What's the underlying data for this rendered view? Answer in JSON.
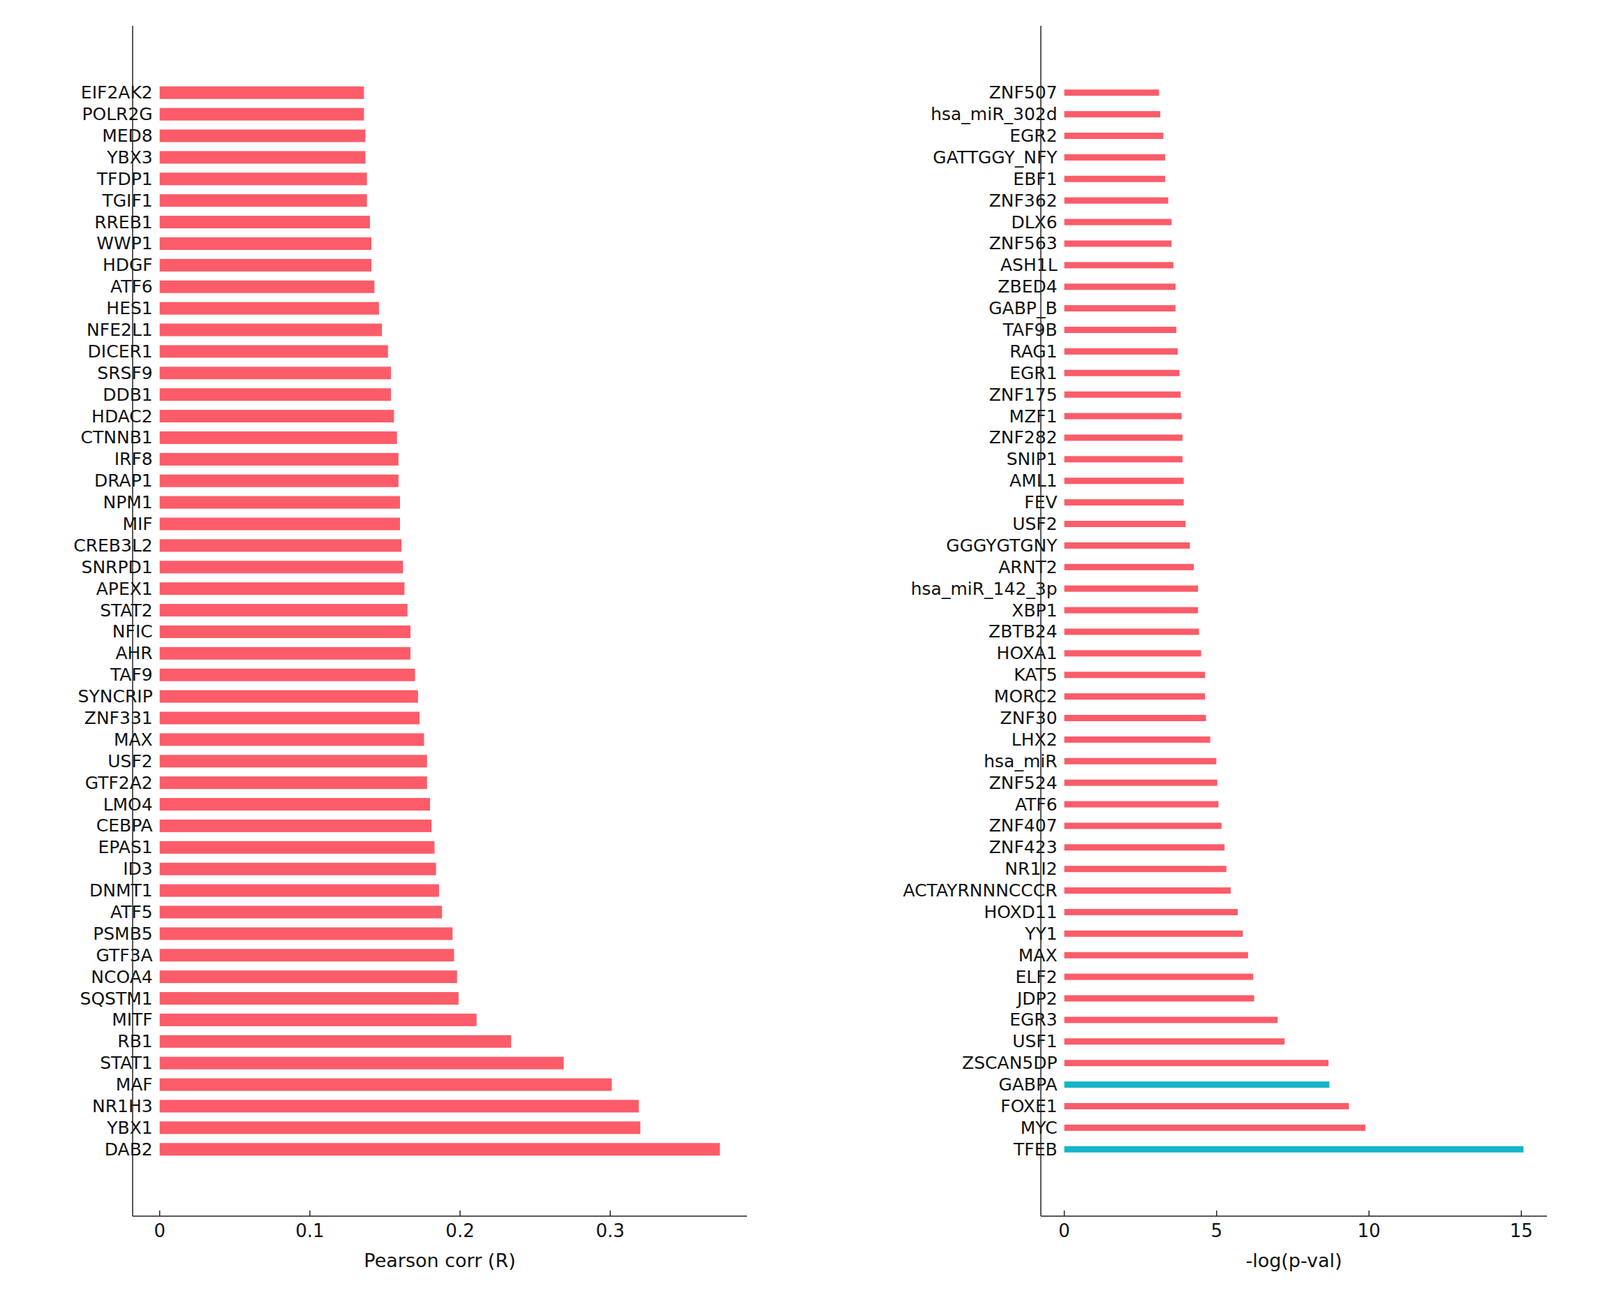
{
  "chart_data": [
    {
      "type": "bar",
      "orientation": "horizontal",
      "x_label": "Pearson corr (R)",
      "categories": [
        "EIF2AK2",
        "POLR2G",
        "MED8",
        "YBX3",
        "TFDP1",
        "TGIF1",
        "RREB1",
        "WWP1",
        "HDGF",
        "ATF6",
        "HES1",
        "NFE2L1",
        "DICER1",
        "SRSF9",
        "DDB1",
        "HDAC2",
        "CTNNB1",
        "IRF8",
        "DRAP1",
        "NPM1",
        "MIF",
        "CREB3L2",
        "SNRPD1",
        "APEX1",
        "STAT2",
        "NFIC",
        "AHR",
        "TAF9",
        "SYNCRIP",
        "ZNF331",
        "MAX",
        "USF2",
        "GTF2A2",
        "LMO4",
        "CEBPA",
        "EPAS1",
        "ID3",
        "DNMT1",
        "ATF5",
        "PSMB5",
        "GTF3A",
        "NCOA4",
        "SQSTM1",
        "MITF",
        "RB1",
        "STAT1",
        "MAF",
        "NR1H3",
        "YBX1",
        "DAB2"
      ],
      "values": [
        0.136,
        0.136,
        0.137,
        0.137,
        0.138,
        0.138,
        0.14,
        0.141,
        0.141,
        0.143,
        0.146,
        0.148,
        0.152,
        0.154,
        0.154,
        0.156,
        0.158,
        0.159,
        0.159,
        0.16,
        0.16,
        0.161,
        0.162,
        0.163,
        0.165,
        0.167,
        0.167,
        0.17,
        0.172,
        0.173,
        0.176,
        0.178,
        0.178,
        0.18,
        0.181,
        0.183,
        0.184,
        0.186,
        0.188,
        0.195,
        0.196,
        0.198,
        0.199,
        0.211,
        0.234,
        0.269,
        0.301,
        0.319,
        0.32,
        0.373
      ],
      "color": "#fc5c69",
      "xlim": [
        -0.018,
        0.391
      ],
      "xticks": [
        0,
        0.1,
        0.2,
        0.3
      ],
      "grid": false
    },
    {
      "type": "bar",
      "orientation": "horizontal",
      "x_label": "-log(p-val)",
      "categories": [
        "ZNF507",
        "hsa_miR_302d",
        "EGR2",
        "GATTGGY_NFY",
        "EBF1",
        "ZNF362",
        "DLX6",
        "ZNF563",
        "ASH1L",
        "ZBED4",
        "GABP_B",
        "TAF9B",
        "RAG1",
        "EGR1",
        "ZNF175",
        "MZF1",
        "ZNF282",
        "SNIP1",
        "AML1",
        "FEV",
        "USF2",
        "GGGYGTGNY",
        "ARNT2",
        "hsa_miR_142_3p",
        "XBP1",
        "ZBTB24",
        "HOXA1",
        "KAT5",
        "MORC2",
        "ZNF30",
        "LHX2",
        "hsa_miR",
        "ZNF524",
        "ATF6",
        "ZNF407",
        "ZNF423",
        "NR1I2",
        "ACTAYRNNNCCCR",
        "HOXD11",
        "YY1",
        "MAX",
        "ELF2",
        "JDP2",
        "EGR3",
        "USF1",
        "ZSCAN5DP",
        "GABPA",
        "FOXE1",
        "MYC",
        "TFEB"
      ],
      "values": [
        3.11,
        3.15,
        3.25,
        3.31,
        3.31,
        3.41,
        3.52,
        3.52,
        3.58,
        3.65,
        3.65,
        3.68,
        3.72,
        3.78,
        3.82,
        3.85,
        3.88,
        3.88,
        3.92,
        3.92,
        3.98,
        4.12,
        4.25,
        4.39,
        4.39,
        4.42,
        4.49,
        4.62,
        4.62,
        4.65,
        4.79,
        4.99,
        5.02,
        5.06,
        5.16,
        5.26,
        5.32,
        5.46,
        5.69,
        5.86,
        6.03,
        6.2,
        6.23,
        7.0,
        7.23,
        8.67,
        8.7,
        9.34,
        9.88,
        15.07
      ],
      "colors": [
        "#fc5c69",
        "#fc5c69",
        "#fc5c69",
        "#fc5c69",
        "#fc5c69",
        "#fc5c69",
        "#fc5c69",
        "#fc5c69",
        "#fc5c69",
        "#fc5c69",
        "#fc5c69",
        "#fc5c69",
        "#fc5c69",
        "#fc5c69",
        "#fc5c69",
        "#fc5c69",
        "#fc5c69",
        "#fc5c69",
        "#fc5c69",
        "#fc5c69",
        "#fc5c69",
        "#fc5c69",
        "#fc5c69",
        "#fc5c69",
        "#fc5c69",
        "#fc5c69",
        "#fc5c69",
        "#fc5c69",
        "#fc5c69",
        "#fc5c69",
        "#fc5c69",
        "#fc5c69",
        "#fc5c69",
        "#fc5c69",
        "#fc5c69",
        "#fc5c69",
        "#fc5c69",
        "#fc5c69",
        "#fc5c69",
        "#fc5c69",
        "#fc5c69",
        "#fc5c69",
        "#fc5c69",
        "#fc5c69",
        "#fc5c69",
        "#fc5c69",
        "#14b5c9",
        "#fc5c69",
        "#fc5c69",
        "#14b5c9"
      ],
      "xlim": [
        -0.77,
        15.84
      ],
      "xticks": [
        0,
        5,
        10,
        15
      ],
      "grid": false
    }
  ]
}
